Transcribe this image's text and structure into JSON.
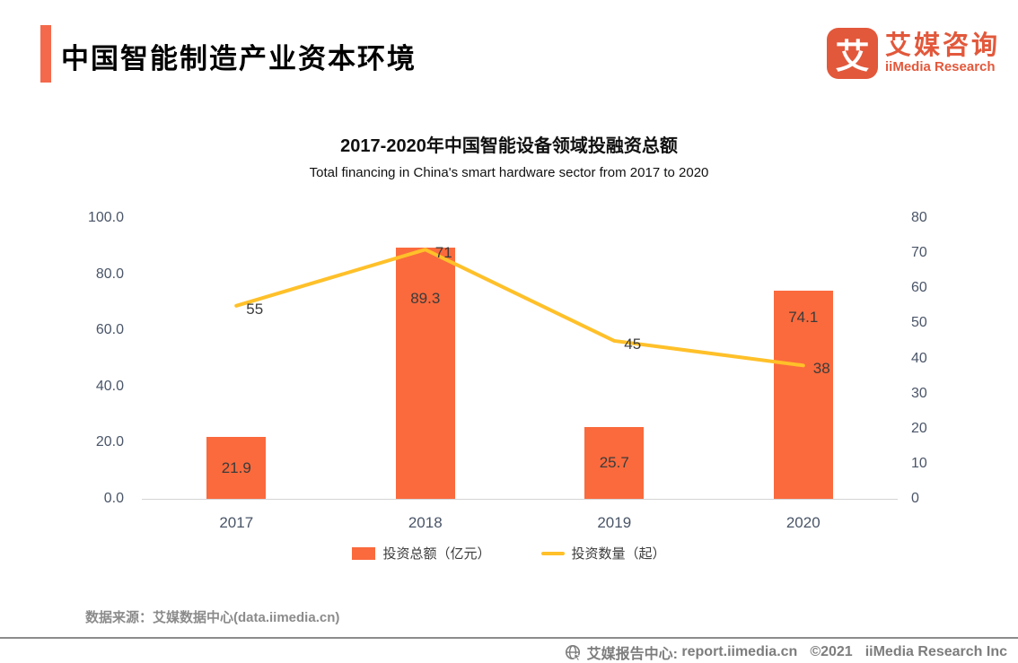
{
  "page": {
    "title": "中国智能制造产业资本环境"
  },
  "logo": {
    "icon_char": "艾",
    "name_cn": "艾媒咨询",
    "name_en": "iiMedia Research"
  },
  "chart_data": {
    "type": "combo",
    "title": "2017-2020年中国智能设备领域投融资总额",
    "subtitle": "Total financing in China's smart hardware sector from 2017 to 2020",
    "categories": [
      "2017",
      "2018",
      "2019",
      "2020"
    ],
    "series": [
      {
        "name": "投资总额（亿元）",
        "type": "bar",
        "axis": "left",
        "color": "#fa6a3d",
        "values": [
          21.9,
          89.3,
          25.7,
          74.1
        ],
        "labels": [
          "21.9",
          "89.3",
          "25.7",
          "74.1"
        ]
      },
      {
        "name": "投资数量（起）",
        "type": "line",
        "axis": "right",
        "color": "#ffc029",
        "values": [
          55,
          71,
          45,
          38
        ],
        "labels": [
          "55",
          "71",
          "45",
          "38"
        ]
      }
    ],
    "left_axis": {
      "min": 0,
      "max": 100,
      "tick_labels": [
        "100.0",
        "80.0",
        "60.0",
        "40.0",
        "20.0",
        "0.0"
      ]
    },
    "right_axis": {
      "min": 0,
      "max": 80,
      "tick_labels": [
        "80",
        "70",
        "60",
        "50",
        "40",
        "30",
        "20",
        "10",
        "0"
      ]
    },
    "legend_position": "bottom",
    "grid": false
  },
  "source": {
    "label": "数据来源：艾媒数据中心(data.iimedia.cn)"
  },
  "footer": {
    "report_center": "艾媒报告中心:",
    "url": "report.iimedia.cn",
    "copyright": "©2021",
    "company": "iiMedia Research Inc"
  },
  "colors": {
    "accent": "#f4694b",
    "logo": "#e2583b",
    "bar": "#fa6a3d",
    "line": "#ffc029",
    "axis_text": "#4a5568",
    "label_text": "#3b3b3b",
    "muted_text": "#8b8b8b"
  }
}
